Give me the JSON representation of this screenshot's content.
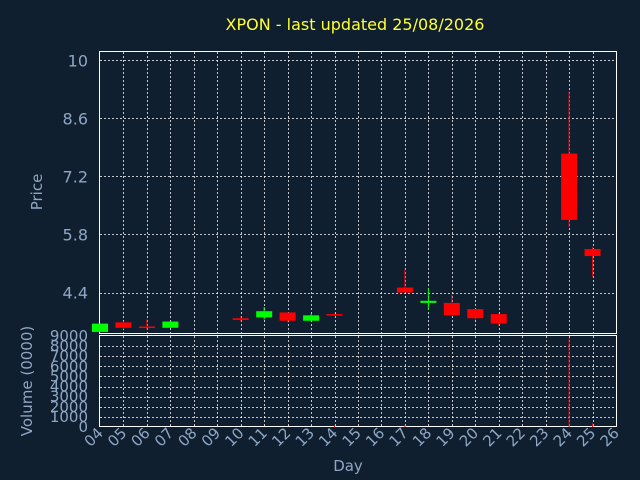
{
  "chart_data": {
    "type": "candlestick",
    "title": "XPON - last updated 25/08/2026",
    "xlabel": "Day",
    "ylabel": "Price",
    "volume_label": "Volume (0000)",
    "x_ticks": [
      "04",
      "05",
      "06",
      "07",
      "08",
      "09",
      "10",
      "11",
      "12",
      "13",
      "14",
      "15",
      "16",
      "17",
      "18",
      "19",
      "20",
      "21",
      "22",
      "23",
      "24",
      "25",
      "26"
    ],
    "x_range": [
      4,
      26
    ],
    "ylim": [
      3.4,
      10.2
    ],
    "y_ticks": [
      4.4,
      5.8,
      7.2,
      8.6,
      10
    ],
    "volume_ylim": [
      0,
      9000
    ],
    "volume_ticks": [
      0,
      1000,
      2000,
      3000,
      4000,
      5000,
      6000,
      7000,
      8000,
      9000
    ],
    "grid": true,
    "up_color": "#00ff00",
    "down_color": "#ff0000",
    "candles": [
      {
        "day": 4,
        "open": 3.45,
        "close": 3.65,
        "high": 3.65,
        "low": 3.45,
        "volume": 0
      },
      {
        "day": 5,
        "open": 3.68,
        "close": 3.55,
        "high": 3.7,
        "low": 3.52,
        "volume": 0
      },
      {
        "day": 6,
        "open": 3.58,
        "close": 3.55,
        "high": 3.75,
        "low": 3.5,
        "volume": 0
      },
      {
        "day": 7,
        "open": 3.55,
        "close": 3.7,
        "high": 3.7,
        "low": 3.55,
        "volume": 0
      },
      {
        "day": 10,
        "open": 3.78,
        "close": 3.74,
        "high": 3.82,
        "low": 3.7,
        "volume": 0
      },
      {
        "day": 11,
        "open": 3.8,
        "close": 3.95,
        "high": 4.05,
        "low": 3.75,
        "volume": 0
      },
      {
        "day": 12,
        "open": 3.92,
        "close": 3.72,
        "high": 3.92,
        "low": 3.68,
        "volume": 0
      },
      {
        "day": 13,
        "open": 3.72,
        "close": 3.85,
        "high": 3.88,
        "low": 3.7,
        "volume": 0
      },
      {
        "day": 14,
        "open": 3.88,
        "close": 3.86,
        "high": 3.9,
        "low": 3.84,
        "volume": 150
      },
      {
        "day": 17,
        "open": 4.52,
        "close": 4.4,
        "high": 4.97,
        "low": 4.4,
        "volume": 200
      },
      {
        "day": 18,
        "open": 4.15,
        "close": 4.2,
        "high": 4.5,
        "low": 3.98,
        "volume": 0
      },
      {
        "day": 19,
        "open": 4.15,
        "close": 3.85,
        "high": 4.35,
        "low": 3.85,
        "volume": 0
      },
      {
        "day": 20,
        "open": 4.0,
        "close": 3.78,
        "high": 4.0,
        "low": 3.75,
        "volume": 0
      },
      {
        "day": 21,
        "open": 3.88,
        "close": 3.65,
        "high": 3.9,
        "low": 3.6,
        "volume": 0
      },
      {
        "day": 24,
        "open": 7.75,
        "close": 6.15,
        "high": 9.25,
        "low": 5.98,
        "volume": 8800
      },
      {
        "day": 25,
        "open": 5.45,
        "close": 5.28,
        "high": 5.5,
        "low": 4.78,
        "volume": 400
      }
    ]
  }
}
